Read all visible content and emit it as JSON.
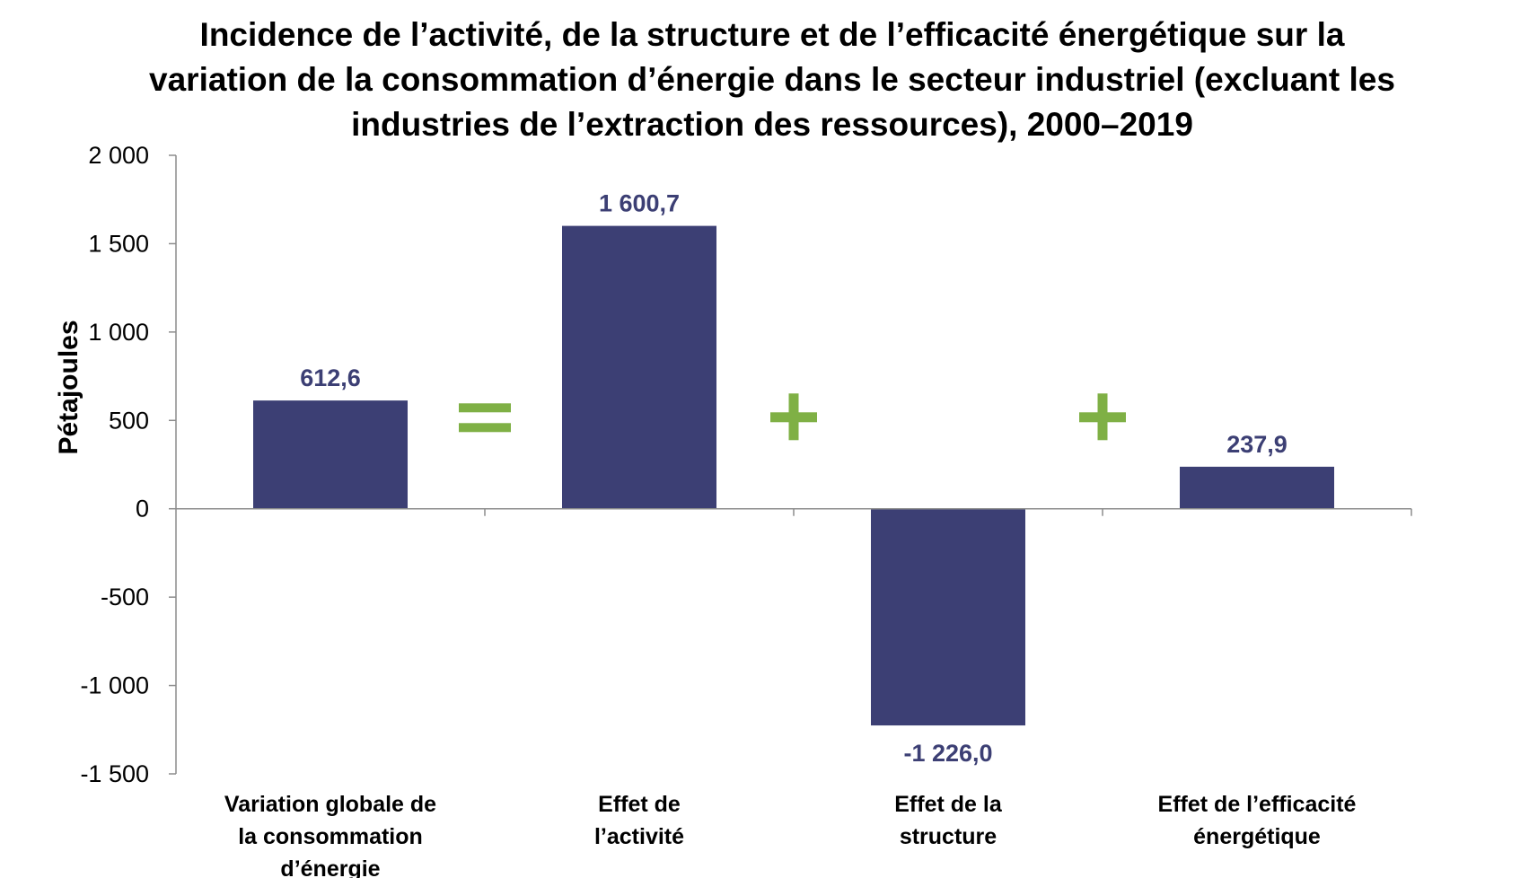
{
  "chart_data": {
    "type": "bar",
    "title": "Incidence de l’activité, de la structure et de l’efficacité énergétique sur la variation de la consommation d’énergie dans le secteur industriel (excluant les industries de l’extraction des ressources), 2000–2019",
    "ylabel": "Pétajoules",
    "xlabel": "",
    "ylim": [
      -1500,
      2000
    ],
    "yticks": [
      2000,
      1500,
      1000,
      500,
      0,
      -500,
      -1000,
      -1500
    ],
    "ytick_labels": [
      "2 000",
      "1 500",
      "1 000",
      "500",
      "0",
      "-500",
      "-1 000",
      "-1 500"
    ],
    "categories": [
      [
        "Variation globale de",
        "la consommation",
        "d’énergie"
      ],
      [
        "Effet de",
        "l’activité"
      ],
      [
        "Effet de la",
        "structure"
      ],
      [
        "Effet de l’efficacité",
        "énergétique"
      ]
    ],
    "values": [
      612.6,
      1600.7,
      -1226.0,
      237.9
    ],
    "data_labels": [
      "612,6",
      "1 600,7",
      "-1 226,0",
      "237,9"
    ],
    "operators": [
      "=",
      "+",
      "+"
    ],
    "legend": "none",
    "grid": false,
    "colors": {
      "bar": "#3c3f74",
      "data_label": "#3c3f74",
      "operator": "#7fb045",
      "axis": "#8c8c8c"
    }
  }
}
